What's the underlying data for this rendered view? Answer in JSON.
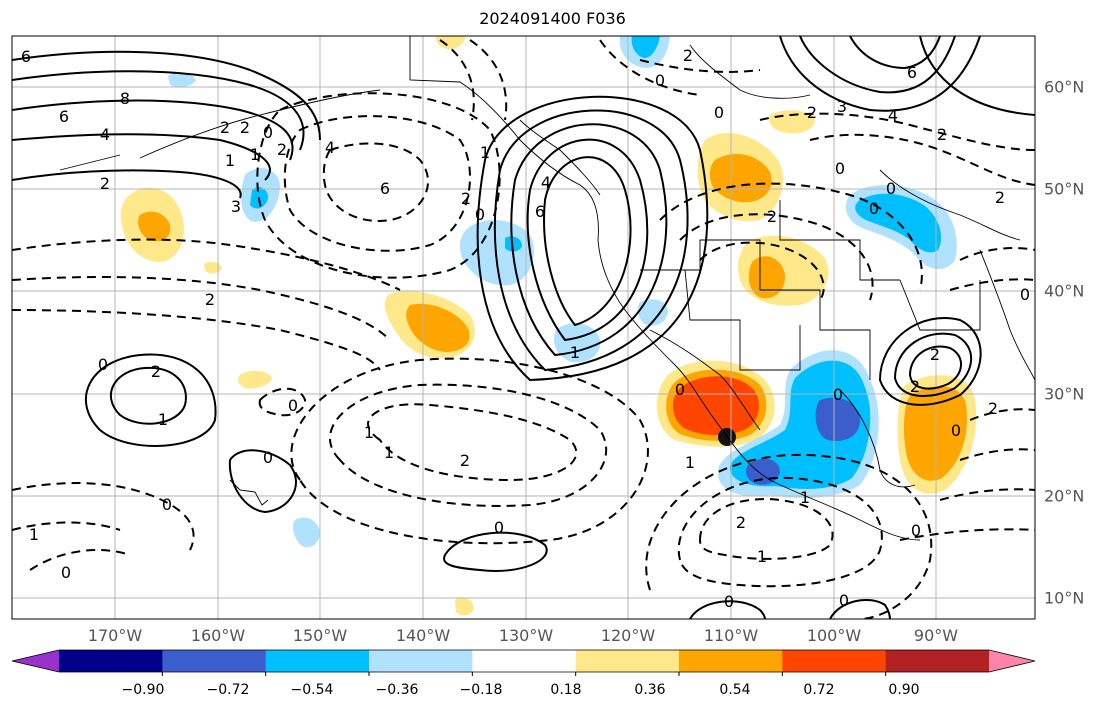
{
  "title": "2024091400 F036",
  "map": {
    "projection": "plate-carree",
    "lon_labels": [
      "170°W",
      "160°W",
      "150°W",
      "140°W",
      "130°W",
      "120°W",
      "110°W",
      "100°W",
      "90°W"
    ],
    "lat_labels": [
      "60°N",
      "50°N",
      "40°N",
      "30°N",
      "20°N",
      "10°N"
    ],
    "gridlines": true
  },
  "colorbar": {
    "ticks": [
      "−0.90",
      "−0.72",
      "−0.54",
      "−0.36",
      "−0.18",
      "0.18",
      "0.36",
      "0.54",
      "0.72",
      "0.90"
    ],
    "colors": [
      "#9932cc",
      "#00008b",
      "#3a5fcd",
      "#00bfff",
      "#b0e2ff",
      "#ffffff",
      "#ffe88a",
      "#ffa500",
      "#ff4500",
      "#b22222",
      "#ff85a8"
    ],
    "extend": "both"
  },
  "contour_labels": [
    "6",
    "8",
    "6",
    "4",
    "2",
    "2",
    "1",
    "0",
    "2",
    "1",
    "2",
    "4",
    "3",
    "6",
    "2",
    "0",
    "2",
    "6",
    "4",
    "1",
    "1",
    "0",
    "2",
    "6",
    "0",
    "2",
    "3",
    "4",
    "2",
    "0",
    "2",
    "0",
    "2",
    "0",
    "1",
    "2",
    "0",
    "1",
    "0",
    "0",
    "0",
    "1",
    "0",
    "1",
    "0",
    "2",
    "0",
    "0",
    "1",
    "2",
    "0",
    "2",
    "0",
    "1",
    "0",
    "2",
    "2",
    "1",
    "0",
    "0"
  ]
}
